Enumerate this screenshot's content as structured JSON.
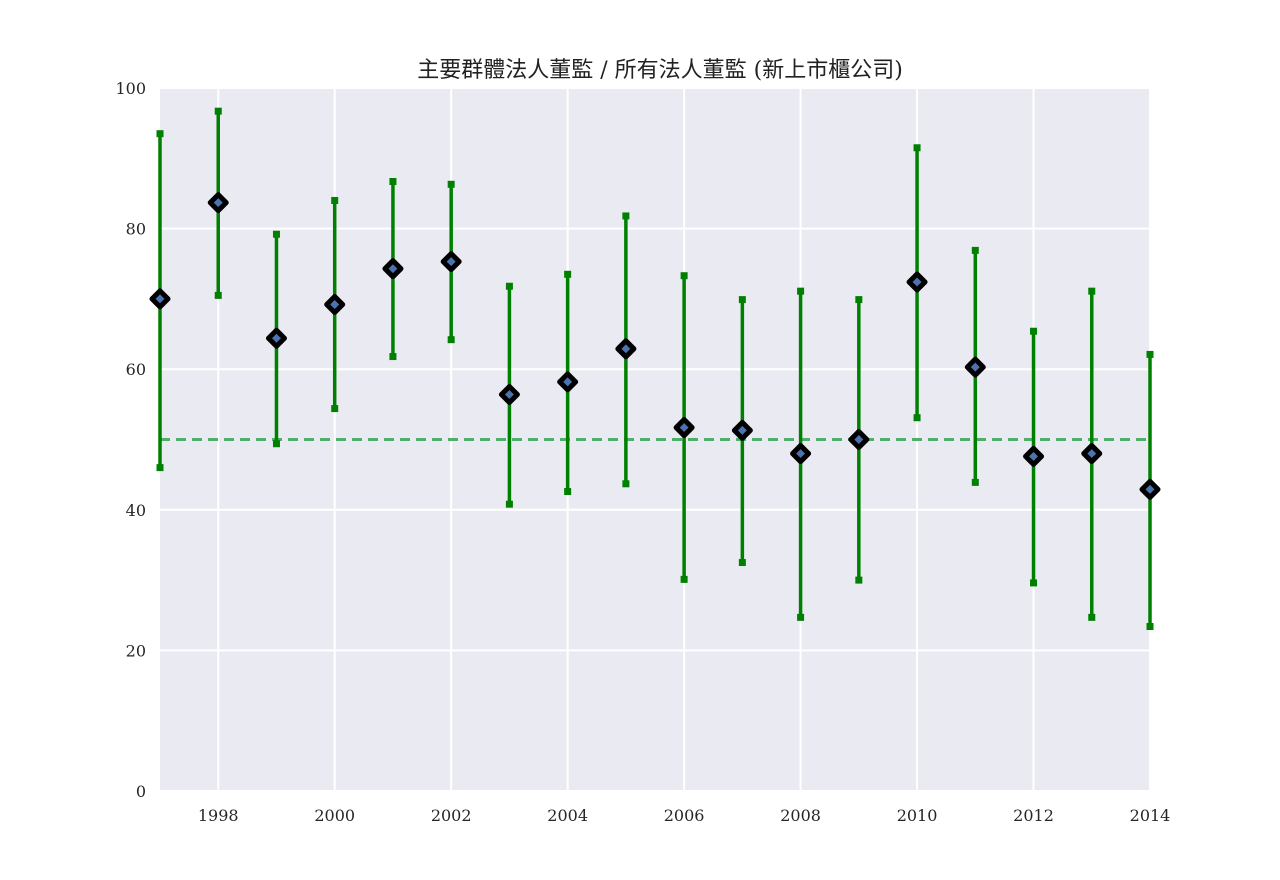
{
  "chart_data": {
    "type": "scatter",
    "title": "主要群體法人董監 / 所有法人董監 (新上市櫃公司)",
    "xlabel": "",
    "ylabel": "",
    "xlim": [
      1997,
      2014
    ],
    "ylim": [
      0,
      100
    ],
    "grid": true,
    "background": "#eaeaf2",
    "x_ticks": [
      1998,
      2000,
      2002,
      2004,
      2006,
      2008,
      2010,
      2012,
      2014
    ],
    "y_ticks": [
      0,
      20,
      40,
      60,
      80,
      100
    ],
    "reference_line": {
      "y": 50,
      "style": "dashed",
      "color": "#4daf6a"
    },
    "series": [
      {
        "marker_color": "#4c72b0",
        "marker_edge": "#000000",
        "errorbar_color": "#008000",
        "points": [
          {
            "x": 1997,
            "y": 70.0,
            "low": 46.0,
            "high": 93.5
          },
          {
            "x": 1998,
            "y": 83.7,
            "low": 70.5,
            "high": 96.7
          },
          {
            "x": 1999,
            "y": 64.4,
            "low": 49.4,
            "high": 79.2
          },
          {
            "x": 2000,
            "y": 69.2,
            "low": 54.4,
            "high": 84.0
          },
          {
            "x": 2001,
            "y": 74.3,
            "low": 61.8,
            "high": 86.7
          },
          {
            "x": 2002,
            "y": 75.3,
            "low": 64.2,
            "high": 86.3
          },
          {
            "x": 2003,
            "y": 56.4,
            "low": 40.8,
            "high": 71.8
          },
          {
            "x": 2004,
            "y": 58.2,
            "low": 42.6,
            "high": 73.5
          },
          {
            "x": 2005,
            "y": 62.9,
            "low": 43.7,
            "high": 81.8
          },
          {
            "x": 2006,
            "y": 51.7,
            "low": 30.1,
            "high": 73.3
          },
          {
            "x": 2007,
            "y": 51.3,
            "low": 32.5,
            "high": 69.9
          },
          {
            "x": 2008,
            "y": 48.0,
            "low": 24.7,
            "high": 71.1
          },
          {
            "x": 2009,
            "y": 50.0,
            "low": 30.0,
            "high": 69.9
          },
          {
            "x": 2010,
            "y": 72.4,
            "low": 53.1,
            "high": 91.5
          },
          {
            "x": 2011,
            "y": 60.3,
            "low": 43.9,
            "high": 76.9
          },
          {
            "x": 2012,
            "y": 47.6,
            "low": 29.6,
            "high": 65.4
          },
          {
            "x": 2013,
            "y": 48.0,
            "low": 24.7,
            "high": 71.1
          },
          {
            "x": 2014,
            "y": 42.9,
            "low": 23.4,
            "high": 62.1
          }
        ]
      }
    ]
  }
}
